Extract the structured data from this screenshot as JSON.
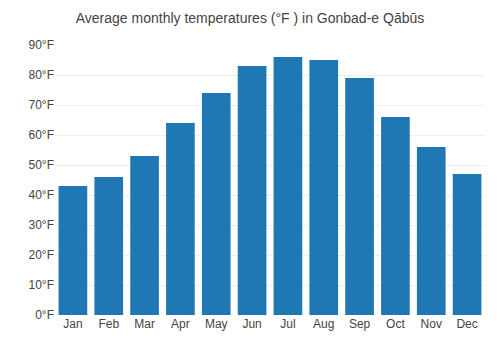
{
  "chart_data": {
    "type": "bar",
    "title": "Average monthly temperatures (°F ) in Gonbad-e Qābūs",
    "categories": [
      "Jan",
      "Feb",
      "Mar",
      "Apr",
      "May",
      "Jun",
      "Jul",
      "Aug",
      "Sep",
      "Oct",
      "Nov",
      "Dec"
    ],
    "values": [
      43,
      46,
      53,
      64,
      74,
      83,
      86,
      85,
      79,
      66,
      56,
      47
    ],
    "ylim": [
      0,
      90
    ],
    "yticks": [
      {
        "value": 0,
        "label": "0°F"
      },
      {
        "value": 10,
        "label": "10°F"
      },
      {
        "value": 20,
        "label": "20°F"
      },
      {
        "value": 30,
        "label": "30°F"
      },
      {
        "value": 40,
        "label": "40°F"
      },
      {
        "value": 50,
        "label": "50°F"
      },
      {
        "value": 60,
        "label": "60°F"
      },
      {
        "value": 70,
        "label": "70°F"
      },
      {
        "value": 80,
        "label": "80°F"
      },
      {
        "value": 90,
        "label": "90°F"
      }
    ],
    "grid": true
  }
}
